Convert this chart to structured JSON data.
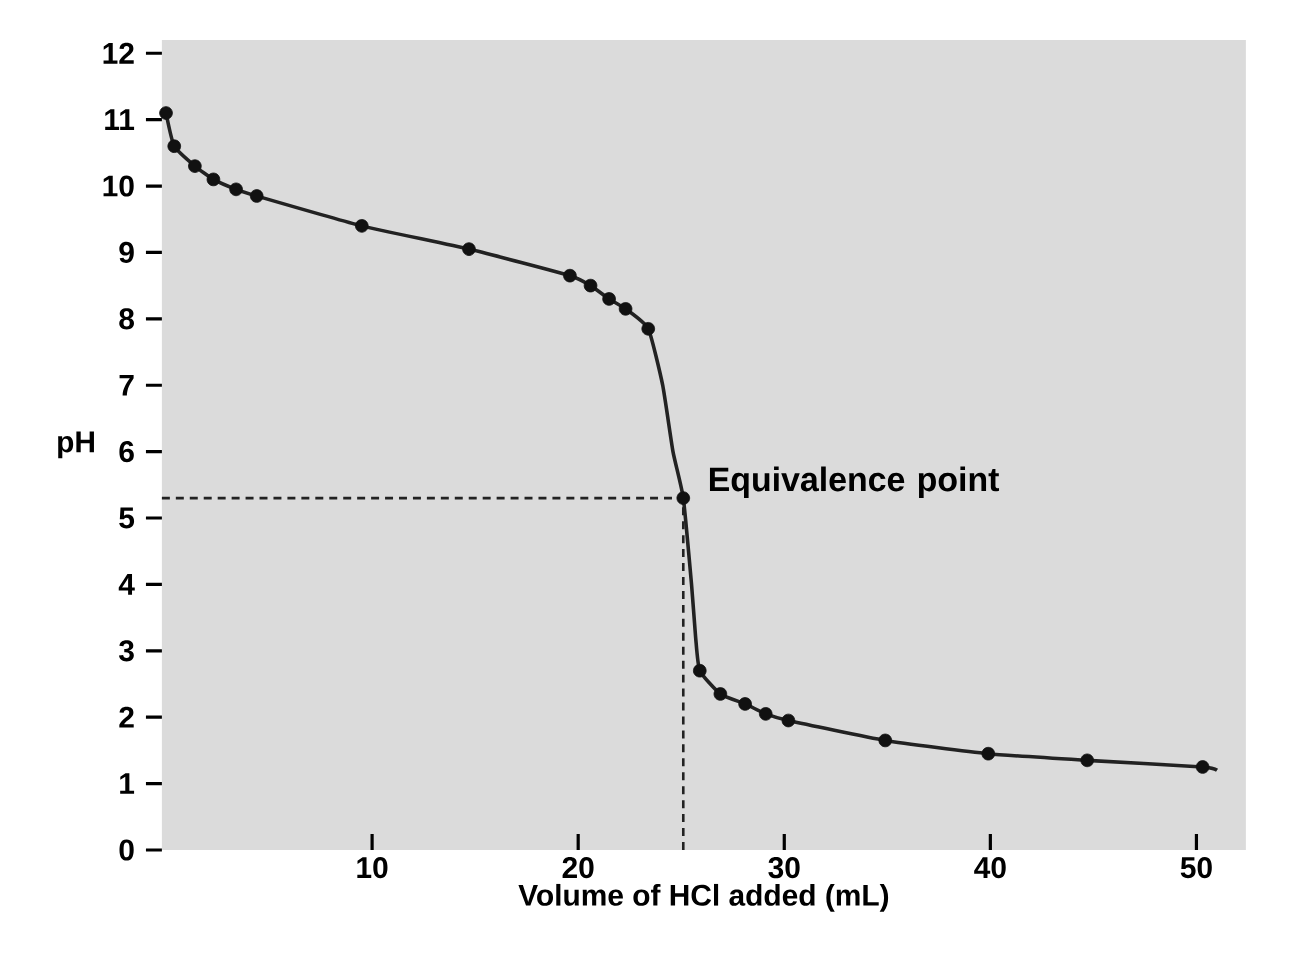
{
  "chart_data": {
    "type": "scatter",
    "xlabel": "Volume of HCl added (mL)",
    "ylabel": "pH",
    "xlim": [
      -0.2,
      52.4
    ],
    "ylim": [
      0,
      12.2
    ],
    "xticks": [
      10,
      20,
      30,
      40,
      50
    ],
    "yticks": [
      0,
      1,
      2,
      3,
      4,
      5,
      6,
      7,
      8,
      9,
      10,
      11,
      12
    ],
    "grid": false,
    "series": [
      {
        "type": "line",
        "marker": "none",
        "color": "#222222",
        "x": [
          0,
          0.4,
          1.4,
          2.3,
          3.4,
          4.4,
          9.5,
          14.7,
          19.6,
          20.6,
          21.5,
          22.3,
          23.4,
          24.1,
          24.6,
          25.1,
          25.5,
          25.7,
          25.9,
          26.9,
          28.1,
          29.1,
          30.2,
          34.9,
          39.9,
          44.7,
          50.3,
          51
        ],
        "values": [
          11.1,
          10.6,
          10.3,
          10.1,
          9.95,
          9.85,
          9.4,
          9.05,
          8.65,
          8.5,
          8.3,
          8.15,
          7.85,
          7,
          6,
          5.3,
          4,
          3.2,
          2.7,
          2.35,
          2.2,
          2.05,
          1.95,
          1.65,
          1.45,
          1.35,
          1.25,
          1.2
        ]
      },
      {
        "marker": "circle",
        "color": "#111111",
        "x": [
          0,
          0.4,
          1.4,
          2.3,
          3.4,
          4.4,
          9.5,
          14.7,
          19.6,
          20.6,
          21.5,
          22.3,
          23.4,
          25.1,
          25.9,
          26.9,
          28.1,
          29.1,
          30.2,
          34.9,
          39.9,
          44.7,
          50.3
        ],
        "values": [
          11.1,
          10.6,
          10.3,
          10.1,
          9.95,
          9.85,
          9.4,
          9.05,
          8.65,
          8.5,
          8.3,
          8.15,
          7.85,
          5.3,
          2.7,
          2.35,
          2.2,
          2.05,
          1.95,
          1.65,
          1.45,
          1.35,
          1.25
        ]
      }
    ],
    "ref_lines": [
      {
        "axis": "x",
        "value": 25.1,
        "color": "#222222",
        "line_style": "dashed"
      },
      {
        "axis": "y",
        "value": 5.3,
        "color": "#222222",
        "line_style": "dashed"
      }
    ],
    "annotations": [
      {
        "text": "Equivalence point",
        "x": 25.1,
        "y": 5.3
      }
    ]
  }
}
